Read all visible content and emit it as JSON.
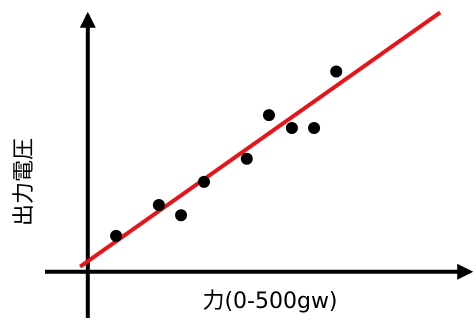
{
  "chart_data": {
    "type": "scatter",
    "xlabel": "力(0-500gw)",
    "ylabel": "出力電圧",
    "xlim": [
      -56,
      500
    ],
    "ylim": [
      -18,
      100
    ],
    "series": [
      {
        "color": "#000000",
        "x": [
          37,
          93,
          122,
          152,
          208,
          237,
          267,
          296,
          325
        ],
        "values": [
          14,
          26,
          22,
          35,
          44,
          61,
          56,
          56,
          78
        ]
      }
    ],
    "fit_line": {
      "color": "#e8141b",
      "x": [
        -10,
        461
      ],
      "values": [
        2,
        101
      ]
    }
  }
}
